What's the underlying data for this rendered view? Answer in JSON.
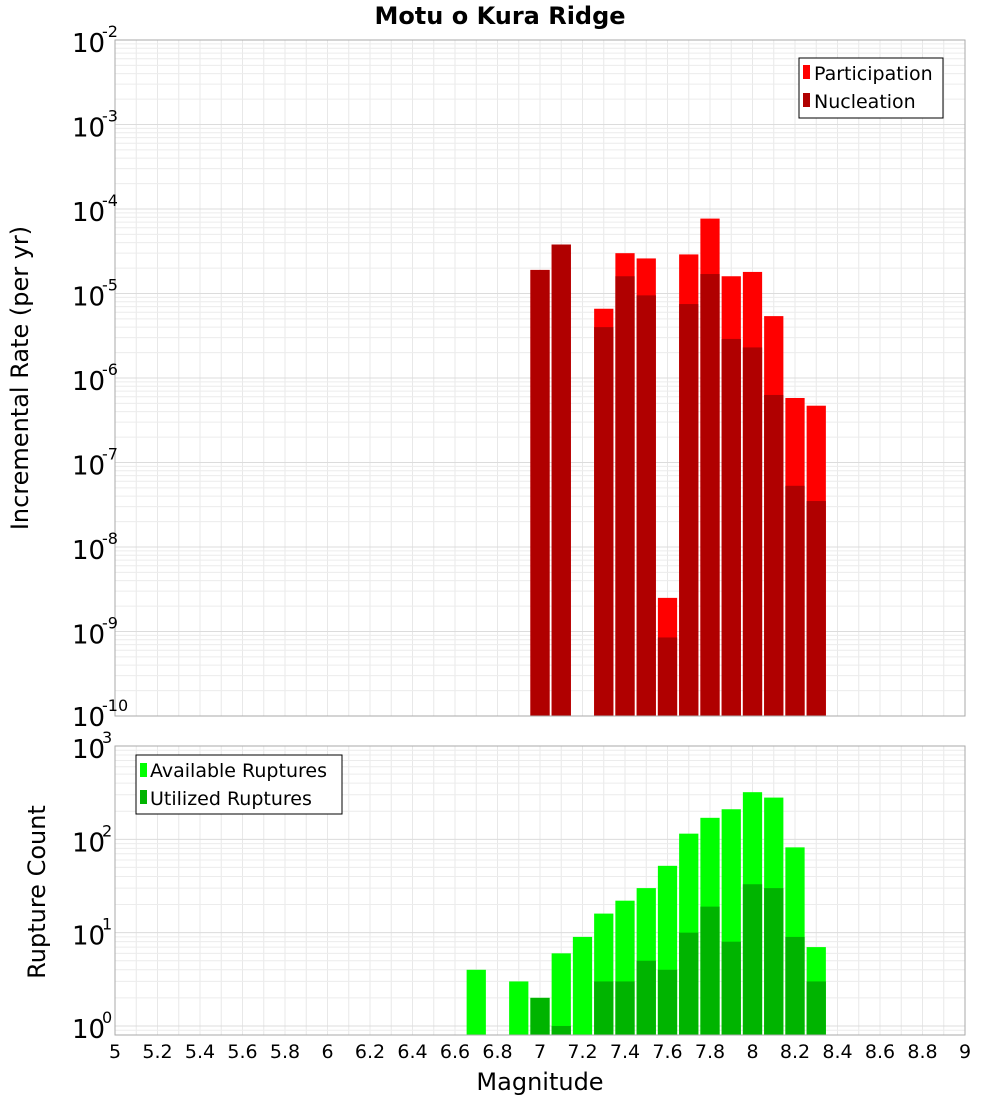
{
  "chart_data": [
    {
      "type": "bar",
      "title": "Motu o Kura Ridge",
      "xlabel": "",
      "ylabel": "Incremental Rate (per yr)",
      "y_scale": "log",
      "ylim": [
        1e-10,
        0.01
      ],
      "xlim": [
        5,
        9
      ],
      "y_tick_exponents": [
        "-10",
        "-9",
        "-8",
        "-7",
        "-6",
        "-5",
        "-4",
        "-3",
        "-2"
      ],
      "y_tick_base": "10",
      "grid": true,
      "legend_position": "top-right",
      "x": [
        7.0,
        7.1,
        7.3,
        7.4,
        7.5,
        7.7,
        7.8,
        7.9,
        8.0,
        8.1,
        8.2,
        8.3
      ],
      "series": [
        {
          "name": "Participation",
          "color": "#ff0000",
          "values": [
            1.9e-05,
            3.8e-05,
            6.6e-06,
            3e-05,
            2.6e-05,
            2.9e-05,
            7.7e-05,
            1.6e-05,
            1.8e-05,
            5.4e-06,
            5.8e-07,
            4.7e-07
          ]
        },
        {
          "name": "Nucleation",
          "color": "#b00000",
          "values": [
            1.9e-05,
            3.8e-05,
            4e-06,
            1.6e-05,
            9.5e-06,
            7.5e-06,
            1.7e-05,
            2.9e-06,
            2.3e-06,
            6.3e-07,
            5.3e-08,
            3.5e-08
          ]
        }
      ],
      "extra_bar": {
        "x": 7.6,
        "participation": 2.5e-09,
        "nucleation": 8.5e-10
      }
    },
    {
      "type": "bar",
      "title": "",
      "xlabel": "Magnitude",
      "ylabel": "Rupture Count",
      "y_scale": "log",
      "ylim": [
        0.8,
        1000
      ],
      "xlim": [
        5,
        9
      ],
      "y_tick_exponents": [
        "0",
        "1",
        "2",
        "3"
      ],
      "y_tick_base": "10",
      "x_ticks": [
        "5",
        "5.2",
        "5.4",
        "5.6",
        "5.8",
        "6",
        "6.2",
        "6.4",
        "6.6",
        "6.8",
        "7",
        "7.2",
        "7.4",
        "7.6",
        "7.8",
        "8",
        "8.2",
        "8.4",
        "8.6",
        "8.8",
        "9"
      ],
      "grid": true,
      "legend_position": "top-left",
      "x": [
        6.7,
        6.9,
        7.0,
        7.1,
        7.2,
        7.3,
        7.4,
        7.5,
        7.6,
        7.7,
        7.8,
        7.9,
        8.0,
        8.1,
        8.2,
        8.3
      ],
      "series": [
        {
          "name": "Available Ruptures",
          "color": "#00ff00",
          "values": [
            4,
            3,
            2,
            6,
            9,
            16,
            22,
            30,
            52,
            115,
            170,
            210,
            320,
            280,
            82,
            7
          ]
        },
        {
          "name": "Utilized Ruptures",
          "color": "#00b400",
          "values": [
            0,
            0,
            2,
            1,
            0,
            3,
            3,
            5,
            4,
            10,
            19,
            8,
            33,
            30,
            9,
            3
          ]
        }
      ]
    }
  ]
}
